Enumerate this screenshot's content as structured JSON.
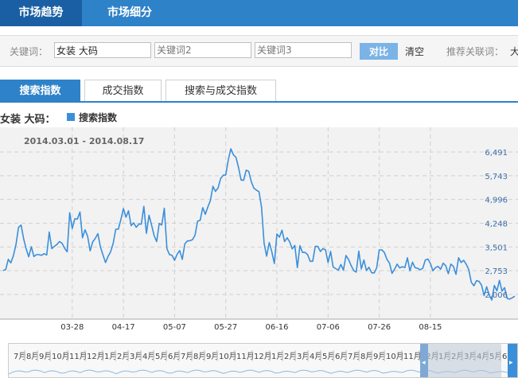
{
  "top_tabs": [
    {
      "label": "市场趋势",
      "active": true
    },
    {
      "label": "市场细分",
      "active": false
    }
  ],
  "keywords": {
    "label": "关键词：",
    "kw1": {
      "value": "女装 大码"
    },
    "kw2": {
      "placeholder": "关键词2"
    },
    "kw3": {
      "placeholder": "关键词3"
    },
    "compare_label": "对比",
    "clear_label": "清空",
    "recommend_label": "推荐关联词：",
    "recommend_first": "大"
  },
  "sub_tabs": [
    {
      "label": "搜索指数",
      "active": true
    },
    {
      "label": "成交指数",
      "active": false
    },
    {
      "label": "搜索与成交指数",
      "active": false
    }
  ],
  "legend": {
    "prefix": "女装 大码：",
    "series_name": "搜索指数"
  },
  "colors": {
    "accent": "#2e82c8",
    "series": "#3b8fd9",
    "plot_bg": "#f2f2f2"
  },
  "chart_data": {
    "type": "line",
    "date_range": "2014.03.01 - 2014.08.17",
    "x_ticks": [
      "03-28",
      "04-17",
      "05-07",
      "05-27",
      "06-16",
      "07-06",
      "07-26",
      "08-15"
    ],
    "y_ticks": [
      2006,
      2753,
      3501,
      4248,
      4996,
      5743,
      6491
    ],
    "y_tick_labels": [
      "2,006",
      "2,753",
      "3,501",
      "4,248",
      "4,996",
      "5,743",
      "6,491"
    ],
    "series": [
      {
        "values": [
          2760,
          2790,
          3110,
          3000,
          3230,
          3580,
          4120,
          4190,
          3760,
          3440,
          3190,
          3510,
          3200,
          3260,
          3260,
          3240,
          3290,
          3250,
          3970,
          3450,
          3520,
          3580,
          3670,
          3620,
          3460,
          3350,
          4580,
          4080,
          4390,
          4380,
          4600,
          3790,
          4040,
          3840,
          3380,
          3660,
          3770,
          3920,
          3500,
          3250,
          3010,
          3200,
          3350,
          3610,
          4060,
          4060,
          4360,
          4710,
          4440,
          4640,
          4170,
          4260,
          4120,
          4220,
          4220,
          4780,
          3930,
          4500,
          4190,
          3860,
          3670,
          4240,
          4190,
          4720,
          3450,
          3260,
          3240,
          3080,
          3270,
          3390,
          3110,
          3600,
          3690,
          3700,
          3730,
          3870,
          4310,
          4340,
          4740,
          4530,
          4760,
          4960,
          5410,
          5250,
          5360,
          5660,
          5760,
          5770,
          6240,
          6590,
          6400,
          6320,
          6000,
          5610,
          5600,
          5920,
          5880,
          5550,
          5350,
          5290,
          5240,
          4750,
          3620,
          3210,
          3640,
          3350,
          2980,
          3910,
          3810,
          4030,
          3670,
          3790,
          3660,
          3440,
          3550,
          2850,
          3540,
          3330,
          3330,
          3260,
          3050,
          3050,
          3520,
          3520,
          3360,
          3450,
          3410,
          3010,
          3360,
          2870,
          2820,
          2770,
          2950,
          2770,
          3230,
          3110,
          2920,
          2760,
          2710,
          3370,
          2810,
          3090,
          2760,
          2860,
          2690,
          2680,
          2840,
          3410,
          3410,
          3330,
          3110,
          2990,
          2670,
          2800,
          2960,
          2840,
          2880,
          2850,
          3160,
          2750,
          3020,
          2850,
          2830,
          2780,
          2830,
          3090,
          3120,
          2980,
          2750,
          2850,
          2890,
          2800,
          2990,
          2910,
          2660,
          2960,
          2890,
          2640,
          3160,
          3010,
          3080,
          2960,
          2790,
          2390,
          2280,
          2440,
          2420,
          2300,
          1970,
          2250,
          1980,
          1830,
          2290,
          2120,
          2450,
          2110,
          2220,
          1880,
          1860,
          1900,
          1950
        ]
      }
    ]
  },
  "navigator": {
    "month_labels": [
      "7月",
      "8月",
      "9月",
      "10月",
      "11月",
      "12月",
      "1月",
      "2月",
      "3月",
      "4月",
      "5月",
      "6月",
      "7月",
      "8月",
      "9月",
      "10月",
      "11月",
      "12月",
      "1月",
      "2月",
      "3月",
      "4月",
      "5月",
      "6月",
      "7月",
      "8月",
      "9月",
      "10月",
      "11月",
      "12月",
      "1月",
      "2月",
      "3月",
      "4月",
      "5月",
      "6月",
      "7月",
      "8"
    ]
  }
}
